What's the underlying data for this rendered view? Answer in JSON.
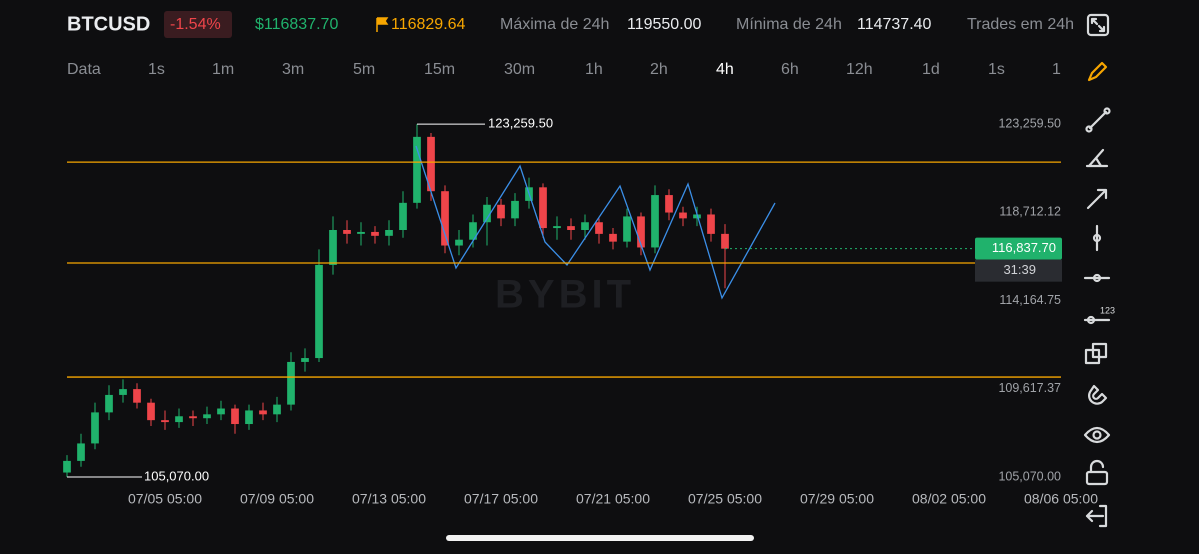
{
  "header": {
    "symbol": "BTCUSD",
    "change": "-1.54%",
    "last_price": "$116837.70",
    "mark_price": "116829.64",
    "high_label": "Máxima de 24h",
    "high": "119550.00",
    "low_label": "Mínima de 24h",
    "low": "114737.40",
    "trades_label": "Trades em 24h"
  },
  "timeframes": [
    "Data",
    "1s",
    "1m",
    "3m",
    "5m",
    "15m",
    "30m",
    "1h",
    "2h",
    "4h",
    "6h",
    "12h",
    "1d",
    "1s",
    "1"
  ],
  "watermark": "BYBIT",
  "chart_data": {
    "type": "candlestick",
    "up_color": "#20b26c",
    "down_color": "#ef454a",
    "level_color": "#f7a600",
    "x": [
      "07/01 17:00",
      "07/02 05:00",
      "07/02 17:00",
      "07/03 05:00",
      "07/03 17:00",
      "07/04 05:00",
      "07/04 17:00",
      "07/05 05:00",
      "07/05 17:00",
      "07/06 05:00",
      "07/06 17:00",
      "07/07 05:00",
      "07/07 17:00",
      "07/08 05:00",
      "07/08 17:00",
      "07/09 05:00",
      "07/09 17:00",
      "07/10 05:00",
      "07/10 17:00",
      "07/11 05:00",
      "07/11 17:00",
      "07/12 05:00",
      "07/12 17:00",
      "07/13 05:00",
      "07/13 17:00",
      "07/14 05:00",
      "07/14 17:00",
      "07/15 05:00",
      "07/15 17:00",
      "07/16 05:00",
      "07/16 17:00",
      "07/17 05:00",
      "07/17 17:00",
      "07/18 05:00",
      "07/18 17:00",
      "07/19 05:00",
      "07/19 17:00",
      "07/20 05:00",
      "07/20 17:00",
      "07/21 05:00",
      "07/21 17:00",
      "07/22 05:00",
      "07/22 17:00",
      "07/23 05:00",
      "07/23 17:00",
      "07/24 05:00",
      "07/24 17:00",
      "07/25 05:00"
    ],
    "open": [
      105300,
      105900,
      106800,
      108400,
      109300,
      109600,
      108900,
      108000,
      107900,
      108200,
      108100,
      108300,
      108600,
      107800,
      108500,
      108300,
      108800,
      111000,
      111200,
      116000,
      117800,
      117600,
      117700,
      117500,
      117800,
      119200,
      122600,
      119800,
      117000,
      117300,
      118200,
      119100,
      118400,
      119300,
      120000,
      117900,
      118000,
      117800,
      118200,
      117600,
      117200,
      118500,
      116900,
      119600,
      118700,
      118400,
      118600,
      117600
    ],
    "high": [
      106200,
      107300,
      108900,
      109800,
      110100,
      109900,
      109100,
      108500,
      108600,
      108500,
      108700,
      109000,
      108800,
      108800,
      108900,
      109200,
      111500,
      111700,
      116800,
      118500,
      118300,
      118200,
      118000,
      118300,
      119800,
      123259.5,
      122800,
      120100,
      117800,
      118600,
      119500,
      119400,
      119700,
      120500,
      120200,
      118500,
      118400,
      118600,
      118400,
      117900,
      118900,
      118700,
      120100,
      119900,
      119000,
      119000,
      118900,
      118100
    ],
    "low": [
      105070,
      105600,
      106500,
      108000,
      108900,
      108600,
      107700,
      107500,
      107600,
      107700,
      107800,
      108000,
      107300,
      107500,
      108000,
      107900,
      108500,
      110500,
      111000,
      115500,
      117100,
      117000,
      117100,
      117000,
      117400,
      118900,
      119300,
      116600,
      116500,
      116900,
      117000,
      118000,
      118000,
      118900,
      117400,
      117300,
      117300,
      117300,
      117100,
      116800,
      116900,
      116500,
      116600,
      118300,
      118000,
      118000,
      117200,
      114800
    ],
    "close": [
      105900,
      106800,
      108400,
      109300,
      109600,
      108900,
      108000,
      107900,
      108200,
      108100,
      108300,
      108600,
      107800,
      108500,
      108300,
      108800,
      111000,
      111200,
      116000,
      117800,
      117600,
      117700,
      117500,
      117800,
      119200,
      122600,
      119800,
      117000,
      117300,
      118200,
      119100,
      118400,
      119300,
      120000,
      117900,
      118000,
      117800,
      118200,
      117600,
      117200,
      118500,
      116900,
      119600,
      118700,
      118400,
      118600,
      117600,
      116837.7
    ],
    "xlim": [
      "07/01 05:00",
      "08/06 05:00"
    ],
    "xticks": [
      "07/05 05:00",
      "07/09 05:00",
      "07/13 05:00",
      "07/17 05:00",
      "07/21 05:00",
      "07/25 05:00",
      "07/29 05:00",
      "08/02 05:00",
      "08/06 05:00"
    ],
    "ylim": [
      104400,
      124500
    ],
    "yticks": [
      {
        "value": 123259.5,
        "label": "123,259.50"
      },
      {
        "value": 118712.12,
        "label": "118,712.12"
      },
      {
        "value": 114164.75,
        "label": "114,164.75"
      },
      {
        "value": 109617.37,
        "label": "109,617.37"
      },
      {
        "value": 105070,
        "label": "105,070.00"
      }
    ],
    "levels": [
      121300,
      116100,
      110220
    ],
    "high_marker": {
      "value": 123259.5,
      "label": "123,259.50"
    },
    "low_marker": {
      "value": 105070,
      "label": "105,070.00"
    },
    "price_label": {
      "value": 116837.7,
      "label": "116,837.70"
    },
    "countdown": "31:39"
  }
}
